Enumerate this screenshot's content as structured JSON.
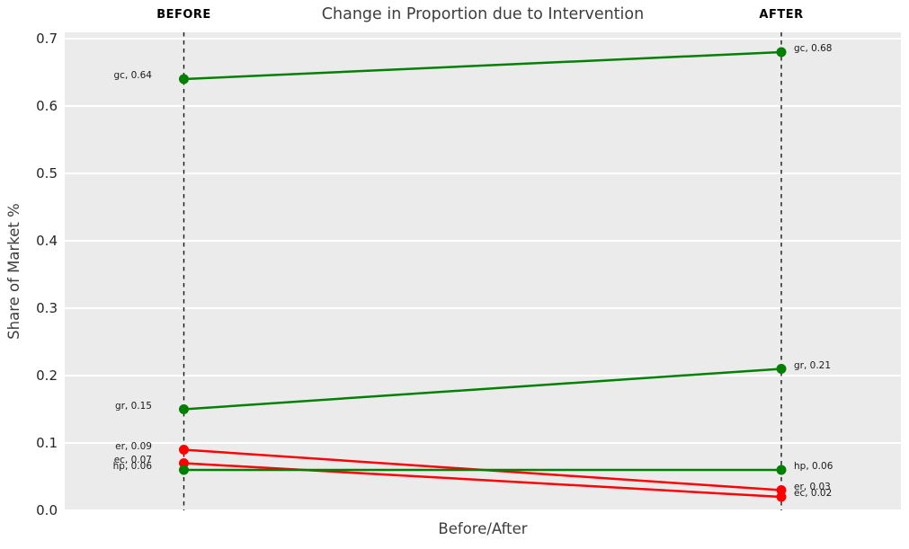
{
  "chart_data": {
    "type": "line",
    "subtype": "slopegraph",
    "title": "Change in Proportion due to Intervention",
    "xlabel": "Before/After",
    "ylabel": "Share of Market %",
    "x_categories": [
      "BEFORE",
      "AFTER"
    ],
    "ylim": [
      0.0,
      0.71
    ],
    "ytick_labels": [
      "0.0",
      "0.1",
      "0.2",
      "0.3",
      "0.4",
      "0.5",
      "0.6",
      "0.7"
    ],
    "ytick_values": [
      0.0,
      0.1,
      0.2,
      0.3,
      0.4,
      0.5,
      0.6,
      0.7
    ],
    "grid": true,
    "legend": "none",
    "colors": {
      "increase": "#008000",
      "decrease": "#ff0000",
      "plot_bg": "#ebebeb",
      "grid": "#ffffff",
      "vline": "#1a1a1a"
    },
    "series": [
      {
        "name": "gc",
        "values": [
          0.64,
          0.68
        ],
        "color": "#008000",
        "left_label": "gc, 0.64",
        "right_label": "gc, 0.68"
      },
      {
        "name": "gr",
        "values": [
          0.15,
          0.21
        ],
        "color": "#008000",
        "left_label": "gr, 0.15",
        "right_label": "gr, 0.21"
      },
      {
        "name": "er",
        "values": [
          0.09,
          0.03
        ],
        "color": "#ff0000",
        "left_label": "er, 0.09",
        "right_label": "er, 0.03"
      },
      {
        "name": "ec",
        "values": [
          0.07,
          0.02
        ],
        "color": "#ff0000",
        "left_label": "ec, 0.07",
        "right_label": "ec, 0.02"
      },
      {
        "name": "hp",
        "values": [
          0.06,
          0.06
        ],
        "color": "#008000",
        "left_label": "hp, 0.06",
        "right_label": "hp, 0.06"
      }
    ]
  }
}
